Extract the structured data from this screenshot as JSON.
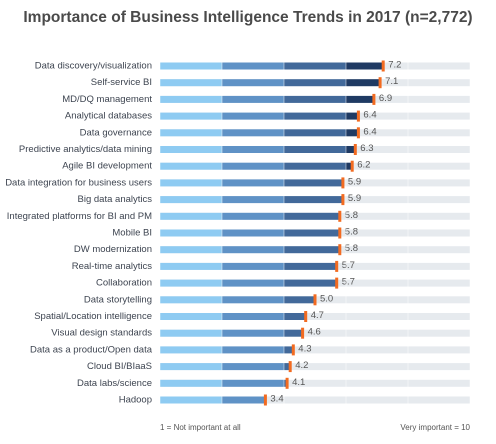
{
  "chart_data": {
    "type": "bar",
    "orientation": "horizontal",
    "title": "Importance of Business Intelligence Trends in 2017 (n=2,772)",
    "categories": [
      "Data discovery/visualization",
      "Self-service BI",
      "MD/DQ management",
      "Analytical databases",
      "Data governance",
      "Predictive analytics/data mining",
      "Agile BI development",
      "Data integration for business users",
      "Big data analytics",
      "Integrated platforms for BI and PM",
      "Mobile BI",
      "DW modernization",
      "Real-time analytics",
      "Collaboration",
      "Data storytelling",
      "Spatial/Location intelligence",
      "Visual design standards",
      "Data as a product/Open data",
      "Cloud BI/BIaaS",
      "Data labs/science",
      "Hadoop"
    ],
    "values": [
      7.2,
      7.1,
      6.9,
      6.4,
      6.4,
      6.3,
      6.2,
      5.9,
      5.9,
      5.8,
      5.8,
      5.8,
      5.7,
      5.7,
      5.0,
      4.7,
      4.6,
      4.3,
      4.2,
      4.1,
      3.4
    ],
    "value_labels": [
      "7.2",
      "7.1",
      "6.9",
      "6.4",
      "6.4",
      "6.3",
      "6.2",
      "5.9",
      "5.9",
      "5.8",
      "5.8",
      "5.8",
      "5.7",
      "5.7",
      "5.0",
      "4.7",
      "4.6",
      "4.3",
      "4.2",
      "4.1",
      "3.4"
    ],
    "xlim": [
      0,
      10
    ],
    "xticks": [
      0,
      2,
      4,
      6,
      8,
      10
    ],
    "band_colors": [
      "#8ecbf2",
      "#5f92c6",
      "#42699a",
      "#1f3a63",
      "#0c2240"
    ],
    "track_color": "#e6eaee",
    "marker_color": "#f26b21",
    "x_label_left": "1 = Not important at all",
    "x_label_right": "Very important = 10"
  }
}
